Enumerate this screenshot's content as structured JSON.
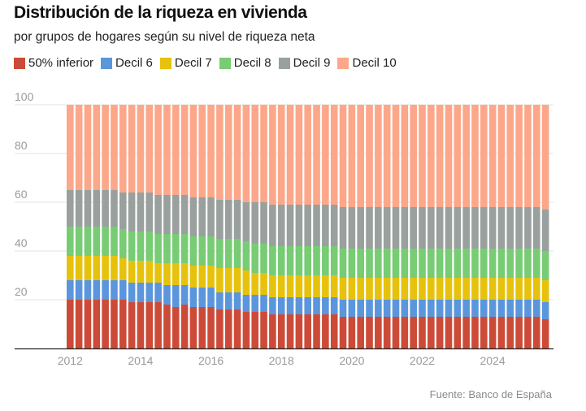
{
  "title": "Distribución de la riqueza en vivienda",
  "subtitle": "por grupos de hogares según su nivel de riqueza neta",
  "source": "Fuente: Banco de España",
  "legend": [
    {
      "label": "50% inferior",
      "color": "#cc4b38"
    },
    {
      "label": "Decil 6",
      "color": "#5b96dc"
    },
    {
      "label": "Decil 7",
      "color": "#e6c20c"
    },
    {
      "label": "Decil 8",
      "color": "#77cc74"
    },
    {
      "label": "Decil 9",
      "color": "#99a09e"
    },
    {
      "label": "Decil 10",
      "color": "#fca78a"
    }
  ],
  "chart_data": {
    "type": "bar",
    "stacked": true,
    "title": "Distribución de la riqueza en vivienda",
    "subtitle": "por grupos de hogares según su nivel de riqueza neta",
    "xlabel": "",
    "ylabel": "",
    "ylim": [
      0,
      100
    ],
    "yticks": [
      20,
      40,
      60,
      80,
      100
    ],
    "xtick_labels": [
      "2012",
      "2014",
      "2016",
      "2018",
      "2020",
      "2022",
      "2024"
    ],
    "grid": true,
    "legend_position": "top-left",
    "categories": [
      "2012T1",
      "2012T2",
      "2012T3",
      "2012T4",
      "2013T1",
      "2013T2",
      "2013T3",
      "2013T4",
      "2014T1",
      "2014T2",
      "2014T3",
      "2014T4",
      "2015T1",
      "2015T2",
      "2015T3",
      "2015T4",
      "2016T1",
      "2016T2",
      "2016T3",
      "2016T4",
      "2017T1",
      "2017T2",
      "2017T3",
      "2017T4",
      "2018T1",
      "2018T2",
      "2018T3",
      "2018T4",
      "2019T1",
      "2019T2",
      "2019T3",
      "2019T4",
      "2020T1",
      "2020T2",
      "2020T3",
      "2020T4",
      "2021T1",
      "2021T2",
      "2021T3",
      "2021T4",
      "2022T1",
      "2022T2",
      "2022T3",
      "2022T4",
      "2023T1",
      "2023T2",
      "2023T3",
      "2023T4",
      "2024T1",
      "2024T2",
      "2024T3",
      "2024T4",
      "2025T1",
      "2025T2",
      "2025T3"
    ],
    "series": [
      {
        "name": "50% inferior",
        "color": "#cc4b38",
        "values": [
          20,
          20,
          20,
          20,
          20,
          20,
          20,
          19,
          19,
          19,
          19,
          18,
          17,
          18,
          17,
          17,
          17,
          16,
          16,
          16,
          15,
          15,
          15,
          14,
          14,
          14,
          14,
          14,
          14,
          14,
          14,
          13,
          13,
          13,
          13,
          13,
          13,
          13,
          13,
          13,
          13,
          13,
          13,
          13,
          13,
          13,
          13,
          13,
          13,
          13,
          13,
          13,
          13,
          13,
          12
        ]
      },
      {
        "name": "Decil 6",
        "color": "#5b96dc",
        "values": [
          8,
          8,
          8,
          8,
          8,
          8,
          8,
          8,
          8,
          8,
          8,
          8,
          9,
          8,
          8,
          8,
          8,
          7,
          7,
          7,
          7,
          7,
          7,
          7,
          7,
          7,
          7,
          7,
          7,
          7,
          7,
          7,
          7,
          7,
          7,
          7,
          7,
          7,
          7,
          7,
          7,
          7,
          7,
          7,
          7,
          7,
          7,
          7,
          7,
          7,
          7,
          7,
          7,
          7,
          7
        ]
      },
      {
        "name": "Decil 7",
        "color": "#e6c20c",
        "values": [
          10,
          10,
          10,
          10,
          10,
          10,
          9,
          9,
          9,
          9,
          8,
          9,
          9,
          9,
          9,
          9,
          9,
          10,
          10,
          10,
          10,
          9,
          9,
          9,
          9,
          9,
          9,
          9,
          9,
          9,
          9,
          9,
          9,
          9,
          9,
          9,
          9,
          9,
          9,
          9,
          9,
          9,
          9,
          9,
          9,
          9,
          9,
          9,
          9,
          9,
          9,
          9,
          9,
          9,
          9
        ]
      },
      {
        "name": "Decil 8",
        "color": "#77cc74",
        "values": [
          12,
          12,
          12,
          12,
          12,
          12,
          12,
          12,
          12,
          12,
          12,
          12,
          12,
          12,
          12,
          12,
          12,
          12,
          12,
          12,
          12,
          12,
          12,
          12,
          12,
          12,
          12,
          12,
          12,
          12,
          12,
          12,
          12,
          12,
          12,
          12,
          12,
          12,
          12,
          12,
          12,
          12,
          12,
          12,
          12,
          12,
          12,
          12,
          12,
          12,
          12,
          12,
          12,
          12,
          12
        ]
      },
      {
        "name": "Decil 9",
        "color": "#99a09e",
        "values": [
          15,
          15,
          15,
          15,
          15,
          15,
          15,
          16,
          16,
          16,
          16,
          16,
          16,
          16,
          16,
          16,
          16,
          16,
          16,
          16,
          16,
          17,
          17,
          17,
          17,
          17,
          17,
          17,
          17,
          17,
          17,
          17,
          17,
          17,
          17,
          17,
          17,
          17,
          17,
          17,
          17,
          17,
          17,
          17,
          17,
          17,
          17,
          17,
          17,
          17,
          17,
          17,
          17,
          17,
          17
        ]
      },
      {
        "name": "Decil 10",
        "color": "#fca78a",
        "values": [
          35,
          35,
          35,
          35,
          35,
          35,
          36,
          36,
          36,
          36,
          37,
          37,
          37,
          37,
          38,
          38,
          38,
          39,
          39,
          39,
          40,
          40,
          40,
          41,
          41,
          41,
          41,
          41,
          41,
          41,
          41,
          42,
          42,
          42,
          42,
          42,
          42,
          42,
          42,
          42,
          42,
          42,
          42,
          42,
          42,
          42,
          42,
          42,
          42,
          42,
          42,
          42,
          42,
          42,
          43
        ]
      }
    ]
  }
}
